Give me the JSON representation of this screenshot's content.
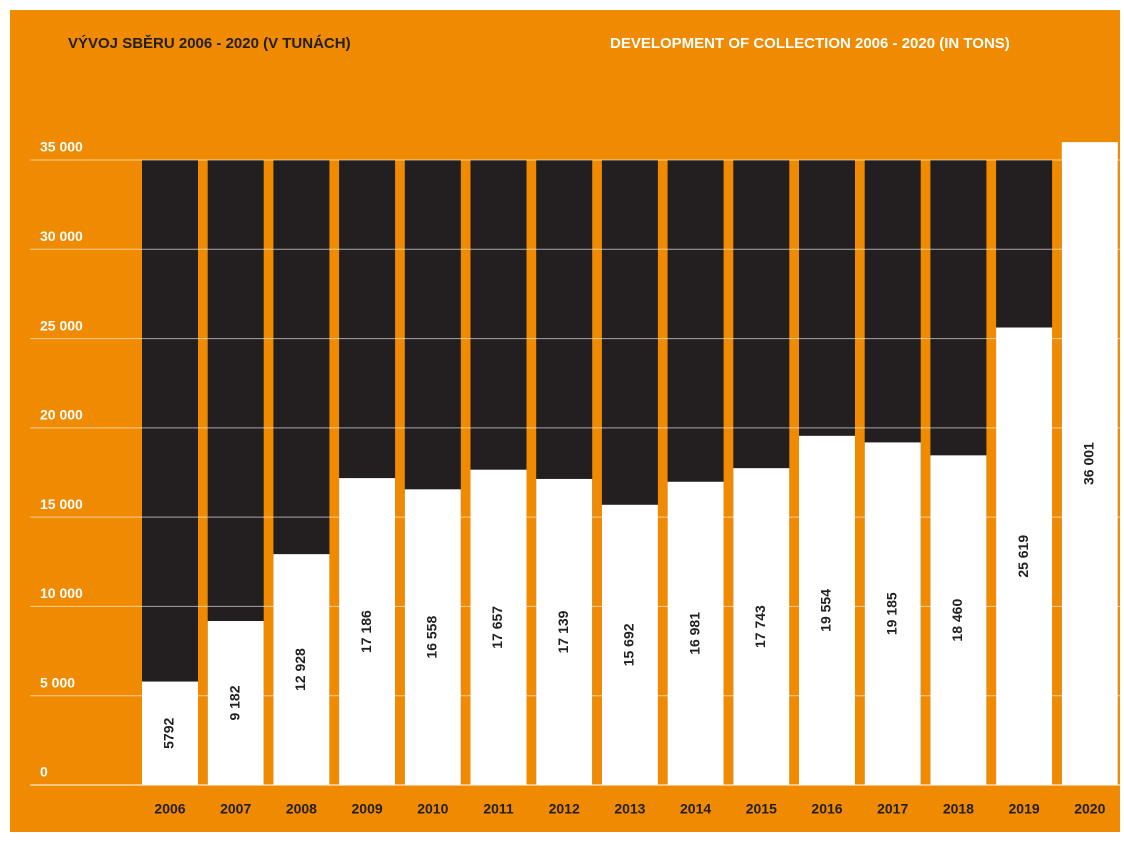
{
  "chart_data": {
    "type": "bar",
    "title": "VÝVOJ SBĚRU 2006 - 2020 (V TUNÁCH)",
    "subtitle": "DEVELOPMENT OF COLLECTION 2006 - 2020 (IN TONS)",
    "categories": [
      "2006",
      "2007",
      "2008",
      "2009",
      "2010",
      "2011",
      "2012",
      "2013",
      "2014",
      "2015",
      "2016",
      "2017",
      "2018",
      "2019",
      "2020"
    ],
    "values": [
      5792,
      9182,
      12928,
      17186,
      16558,
      17657,
      17139,
      15692,
      16981,
      17743,
      19554,
      19185,
      18460,
      25619,
      36001
    ],
    "value_labels": [
      "5792",
      "9 182",
      "12 928",
      "17 186",
      "16 558",
      "17 657",
      "17 139",
      "15 692",
      "16 981",
      "17 743",
      "19 554",
      "19 185",
      "18 460",
      "25 619",
      "36 001"
    ],
    "color": "#ffffff",
    "ylim": [
      0,
      35000
    ],
    "yticks": [
      0,
      {
        "value": 5000,
        "label": "5 000"
      },
      {
        "value": 10000,
        "label": "10 000"
      },
      {
        "value": 15000,
        "label": "15 000"
      },
      {
        "value": 20000,
        "label": "20 000"
      },
      {
        "value": 25000,
        "label": "25 000"
      },
      {
        "value": 30000,
        "label": "30 000"
      },
      {
        "value": 35000,
        "label": "35 000"
      }
    ],
    "grid": true
  }
}
